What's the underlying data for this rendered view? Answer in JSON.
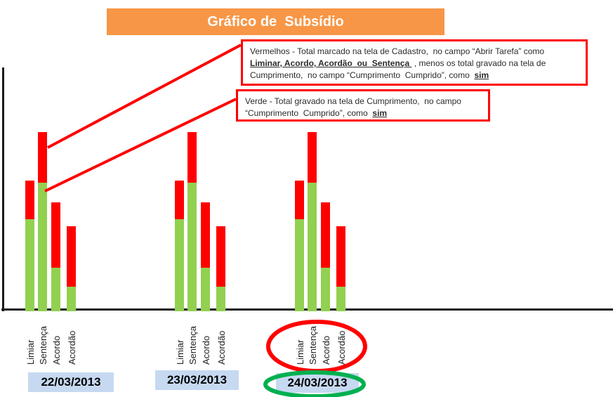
{
  "title": {
    "label": "Gráfico de  Subsídio",
    "bg_color": "#F79646",
    "text_color": "#FFFFFF"
  },
  "annotations": {
    "red_box": {
      "part1": "Vermelhos - Total marcado na tela de Cadastro,  no campo “Abrir Tarefa” como ",
      "bold_underline1": "Liminar, Acordo, Acordão  ou  Sentença ",
      "part2": " , menos os total gravado na tela de Cumprimento,  no campo “Cumprimento  Cumprido”, como  ",
      "bold_underline2": "sim",
      "border_color": "#FF0000"
    },
    "green_box": {
      "part1": "Verde - Total gravado na tela de Cumprimento,  no campo “Cumprimento  Cumprido”, como  ",
      "bold_underline1": "sim",
      "border_color": "#FF0000"
    }
  },
  "highlights": {
    "red_ellipse_target": "category labels of 24/03/2013",
    "red_ellipse_color": "#FF0000",
    "green_ellipse_target": "24/03/2013",
    "green_ellipse_color": "#00B050"
  },
  "chart_data": {
    "type": "bar",
    "stacked": true,
    "title": "Gráfico de  Subsídio",
    "xlabel": "",
    "ylabel": "",
    "ylim": [
      0,
      100
    ],
    "grid": false,
    "legend_position": "none",
    "axis_note": "no numeric ticks or gridlines shown; values estimated from bar heights",
    "categories": [
      "Limiar",
      "Sentença",
      "Acordo",
      "Acordão"
    ],
    "colors": {
      "Verde": "#92D050",
      "Vermelho": "#FF0000"
    },
    "groups": [
      {
        "date": "22/03/2013",
        "series": [
          {
            "name": "Verde",
            "values": [
              38,
              53,
              18,
              10
            ]
          },
          {
            "name": "Vermelho",
            "values": [
              16,
              21,
              27,
              25
            ]
          }
        ]
      },
      {
        "date": "23/03/2013",
        "series": [
          {
            "name": "Verde",
            "values": [
              38,
              53,
              18,
              10
            ]
          },
          {
            "name": "Vermelho",
            "values": [
              16,
              21,
              27,
              25
            ]
          }
        ]
      },
      {
        "date": "24/03/2013",
        "series": [
          {
            "name": "Verde",
            "values": [
              38,
              53,
              18,
              10
            ]
          },
          {
            "name": "Vermelho",
            "values": [
              16,
              21,
              27,
              25
            ]
          }
        ]
      }
    ]
  }
}
